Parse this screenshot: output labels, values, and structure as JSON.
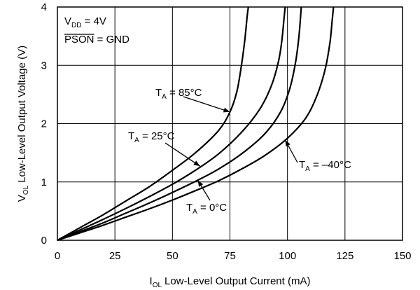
{
  "chart_data": {
    "type": "line",
    "title": "",
    "xlabel": {
      "symbol": "I",
      "subscript": "OL",
      "text": "Low-Level Output Current (mA)"
    },
    "ylabel": {
      "symbol": "V",
      "subscript": "OL",
      "text": "Low-Level Output Voltage (V)"
    },
    "xlim": [
      0,
      150
    ],
    "ylim": [
      0,
      4
    ],
    "xticks": [
      "0",
      "25",
      "50",
      "75",
      "100",
      "125",
      "150"
    ],
    "yticks": [
      "0",
      "1",
      "2",
      "3",
      "4"
    ],
    "grid": true,
    "conditions": [
      {
        "symbol": "V",
        "subscript": "DD",
        "text": " = 4V",
        "overline": false
      },
      {
        "symbol": "PSON",
        "subscript": "",
        "text": " = GND",
        "overline": true
      }
    ],
    "series": [
      {
        "name": "T_A = 85°C",
        "x": [
          0,
          10,
          20,
          30,
          40,
          50,
          60,
          70,
          75,
          78,
          80,
          81.5,
          82.5,
          83
        ],
        "y": [
          0,
          0.22,
          0.44,
          0.68,
          0.92,
          1.2,
          1.5,
          1.88,
          2.2,
          2.55,
          3.0,
          3.45,
          3.85,
          4.0
        ]
      },
      {
        "name": "T_A = 25°C",
        "x": [
          0,
          10,
          20,
          30,
          40,
          50,
          60,
          70,
          80,
          88,
          93,
          96,
          97.5,
          98.5,
          99
        ],
        "y": [
          0,
          0.18,
          0.36,
          0.55,
          0.75,
          0.96,
          1.2,
          1.48,
          1.85,
          2.25,
          2.65,
          3.05,
          3.4,
          3.8,
          4.0
        ]
      },
      {
        "name": "T_A = 0°C",
        "x": [
          0,
          10,
          20,
          30,
          40,
          50,
          60,
          70,
          80,
          90,
          97,
          101,
          103.5,
          105,
          106
        ],
        "y": [
          0,
          0.15,
          0.3,
          0.47,
          0.64,
          0.82,
          1.01,
          1.22,
          1.48,
          1.82,
          2.2,
          2.6,
          3.05,
          3.5,
          4.0
        ]
      },
      {
        "name": "T_A = –40°C",
        "x": [
          0,
          10,
          20,
          30,
          40,
          50,
          60,
          70,
          80,
          90,
          100,
          108,
          113,
          116.5,
          118.5,
          119.5,
          120
        ],
        "y": [
          0,
          0.13,
          0.26,
          0.4,
          0.54,
          0.69,
          0.85,
          1.02,
          1.22,
          1.45,
          1.75,
          2.1,
          2.5,
          2.95,
          3.4,
          3.8,
          4.0
        ]
      }
    ],
    "annotations": [
      {
        "symbol": "T",
        "subscript": "A",
        "text": " = 85°C",
        "series": 0,
        "point_x": 75,
        "point_y": 2.2
      },
      {
        "symbol": "T",
        "subscript": "A",
        "text": " = 25°C",
        "series": 1,
        "point_x": 62,
        "point_y": 1.27
      },
      {
        "symbol": "T",
        "subscript": "A",
        "text": " = 0°C",
        "series": 2,
        "point_x": 61,
        "point_y": 1.03
      },
      {
        "symbol": "T",
        "subscript": "A",
        "text": " = –40°C",
        "series": 3,
        "point_x": 99,
        "point_y": 1.72
      }
    ]
  }
}
